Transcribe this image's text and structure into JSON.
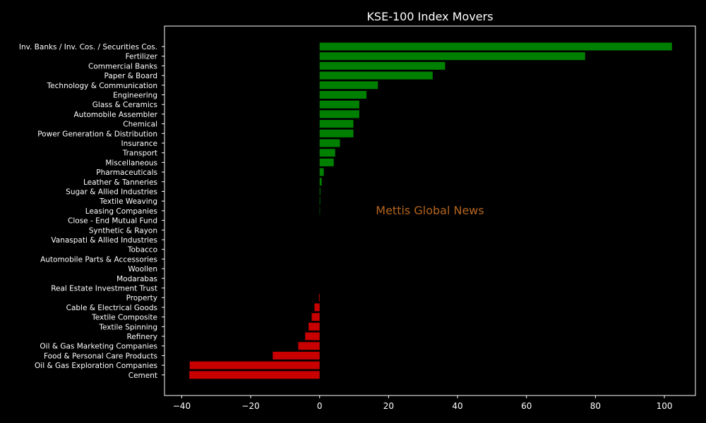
{
  "chart_data": {
    "type": "bar",
    "orientation": "horizontal",
    "title": "KSE-100 Index Movers",
    "xlabel": "",
    "ylabel": "",
    "xlim": [
      -45,
      109
    ],
    "xticks": [
      -40,
      -20,
      0,
      20,
      40,
      60,
      80,
      100
    ],
    "xtick_labels": [
      "−40",
      "−20",
      "0",
      "20",
      "40",
      "60",
      "80",
      "100"
    ],
    "grid": false,
    "positive_color": "#008000",
    "negative_color": "#c80000",
    "categories": [
      "Inv. Banks / Inv. Cos. / Securities Cos.",
      "Fertilizer",
      "Commercial Banks",
      "Paper & Board",
      "Technology & Communication",
      "Engineering",
      "Glass & Ceramics",
      "Automobile Assembler",
      "Chemical",
      "Power Generation & Distribution",
      "Insurance",
      "Transport",
      "Miscellaneous",
      "Pharmaceuticals",
      "Leather & Tanneries",
      "Sugar & Allied Industries",
      "Textile Weaving",
      "Leasing Companies",
      "Close - End Mutual Fund",
      "Synthetic & Rayon",
      "Vanaspati & Allied Industries",
      "Tobacco",
      "Automobile Parts & Accessories",
      "Woollen",
      "Modarabas",
      "Real Estate Investment Trust",
      "Property",
      "Cable & Electrical Goods",
      "Textile Composite",
      "Textile Spinning",
      "Refinery",
      "Oil & Gas Marketing Companies",
      "Food & Personal Care Products",
      "Oil & Gas Exploration Companies",
      "Cement"
    ],
    "values": [
      102.2,
      77.0,
      36.4,
      32.8,
      16.9,
      13.6,
      11.5,
      11.5,
      9.8,
      9.8,
      5.9,
      4.5,
      4.1,
      1.2,
      0.6,
      0.2,
      0.15,
      0.1,
      0,
      0,
      0,
      0,
      0,
      0,
      0,
      0,
      -0.2,
      -1.5,
      -2.3,
      -3.2,
      -4.2,
      -6.2,
      -13.6,
      -37.7,
      -37.8
    ],
    "annotation": {
      "text": "Mettis Global News",
      "color": "#b5651d"
    }
  }
}
